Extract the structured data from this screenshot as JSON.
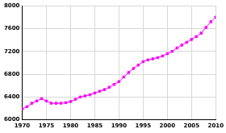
{
  "chart_data": {
    "type": "line",
    "x": [
      1970,
      1971,
      1972,
      1973,
      1974,
      1975,
      1976,
      1977,
      1978,
      1979,
      1980,
      1981,
      1982,
      1983,
      1984,
      1985,
      1986,
      1987,
      1988,
      1989,
      1990,
      1991,
      1992,
      1993,
      1994,
      1995,
      1996,
      1997,
      1998,
      1999,
      2000,
      2001,
      2002,
      2003,
      2004,
      2005,
      2006,
      2007,
      2008,
      2009,
      2010
    ],
    "values": [
      6190,
      6230,
      6290,
      6330,
      6370,
      6330,
      6290,
      6290,
      6290,
      6300,
      6320,
      6360,
      6400,
      6420,
      6440,
      6470,
      6500,
      6530,
      6570,
      6620,
      6670,
      6750,
      6830,
      6900,
      6960,
      7020,
      7050,
      7070,
      7090,
      7120,
      7160,
      7200,
      7260,
      7310,
      7360,
      7410,
      7460,
      7520,
      7620,
      7720,
      7800
    ],
    "color": "#ff00ff",
    "marker": "square",
    "line_style": "solid",
    "xlim": [
      1970,
      2010
    ],
    "xticks": [
      1970,
      1975,
      1980,
      1985,
      1990,
      1995,
      2000,
      2005,
      2010
    ],
    "ylim": [
      6000,
      8000
    ],
    "yticks": [
      6000,
      6400,
      6800,
      7200,
      7600,
      8000
    ],
    "grid": true
  }
}
